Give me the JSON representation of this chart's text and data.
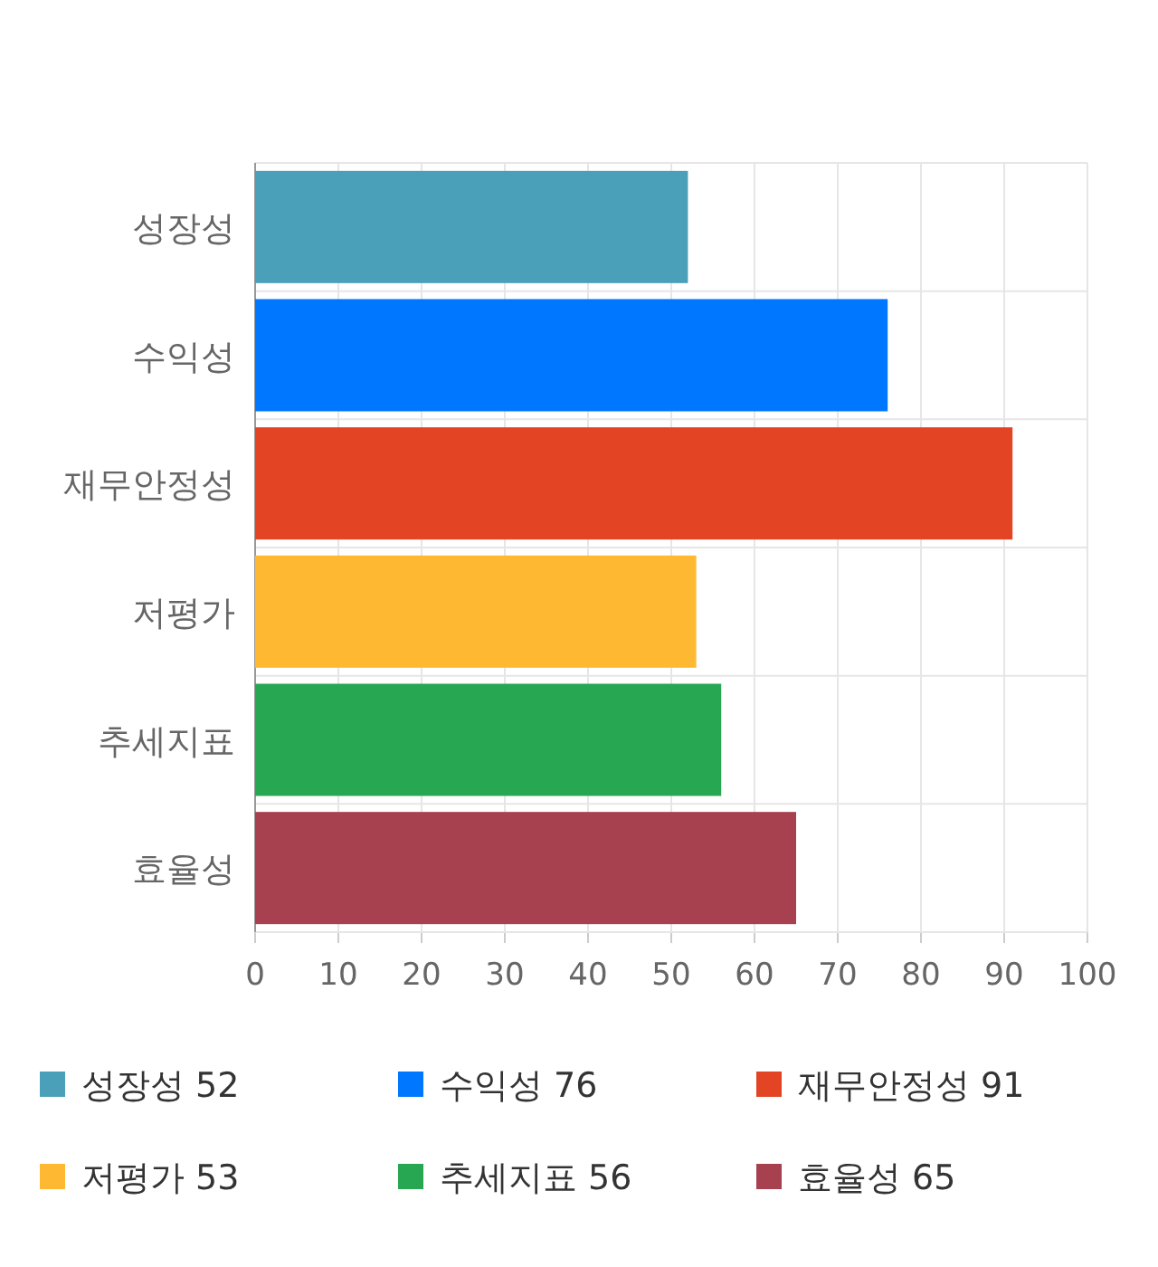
{
  "chart_data": {
    "type": "bar",
    "orientation": "horizontal",
    "stacked": true,
    "categories": [
      "성장성",
      "수익성",
      "재무안정성",
      "저평가",
      "추세지표",
      "효율성"
    ],
    "series": [
      {
        "name": "성장성 52",
        "color": "#4aa0b9",
        "values": [
          52,
          null,
          null,
          null,
          null,
          null
        ]
      },
      {
        "name": "수익성 76",
        "color": "#0077ff",
        "values": [
          null,
          76,
          null,
          null,
          null,
          null
        ]
      },
      {
        "name": "재무안정성 91",
        "color": "#e24424",
        "values": [
          null,
          null,
          91,
          null,
          null,
          null
        ]
      },
      {
        "name": "저평가 53",
        "color": "#ffb832",
        "values": [
          null,
          null,
          null,
          53,
          null,
          null
        ]
      },
      {
        "name": "추세지표 56",
        "color": "#28a753",
        "values": [
          null,
          null,
          null,
          null,
          56,
          null
        ]
      },
      {
        "name": "효율성 65",
        "color": "#a7404f",
        "values": [
          null,
          null,
          null,
          null,
          null,
          65
        ]
      }
    ],
    "xlim": [
      0,
      100
    ],
    "xticks": [
      0,
      10,
      20,
      30,
      40,
      50,
      60,
      70,
      80,
      90,
      100
    ],
    "grid": true,
    "legend": "bottom"
  }
}
